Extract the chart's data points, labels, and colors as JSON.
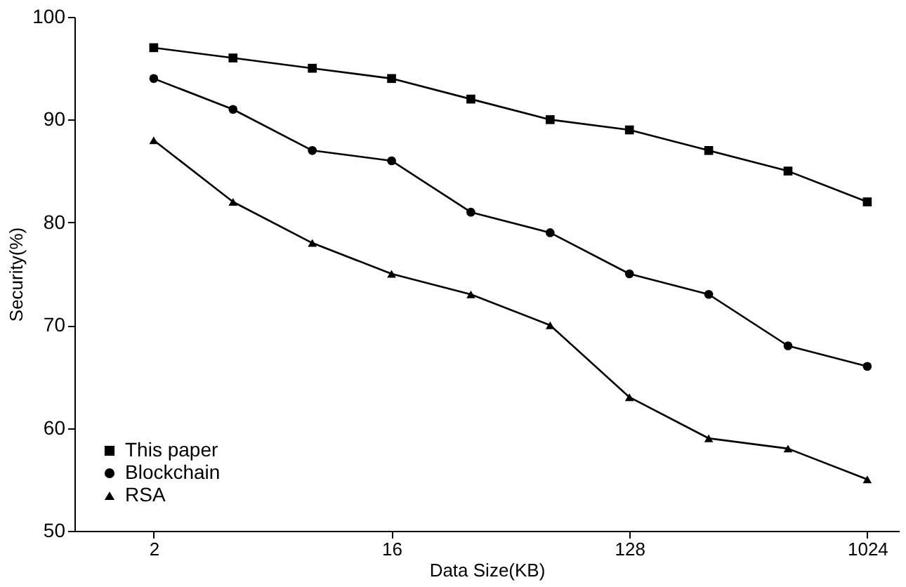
{
  "chart_data": {
    "type": "line",
    "xlabel": "Data Size(KB)",
    "ylabel": "Security(%)",
    "x": [
      2,
      4,
      8,
      16,
      32,
      64,
      128,
      256,
      512,
      1024
    ],
    "log": "x",
    "xlim": [
      1,
      1351
    ],
    "xticks": [
      2,
      16,
      128,
      1024
    ],
    "ylim": [
      50,
      100
    ],
    "yticks": [
      50,
      60,
      70,
      80,
      90,
      100
    ],
    "grid": false,
    "legend": "bottom left",
    "series": [
      {
        "name": "This paper",
        "color": "#000000",
        "marker": "square",
        "values": [
          97,
          96,
          95,
          94,
          92,
          90,
          89,
          87,
          85,
          82
        ]
      },
      {
        "name": "Blockchain",
        "color": "#000000",
        "marker": "circle",
        "values": [
          94,
          91,
          87,
          86,
          81,
          79,
          75,
          73,
          68,
          66
        ]
      },
      {
        "name": "RSA",
        "color": "#000000",
        "marker": "triangle",
        "values": [
          88,
          82,
          78,
          75,
          73,
          70,
          63,
          59,
          58,
          55
        ]
      }
    ]
  }
}
